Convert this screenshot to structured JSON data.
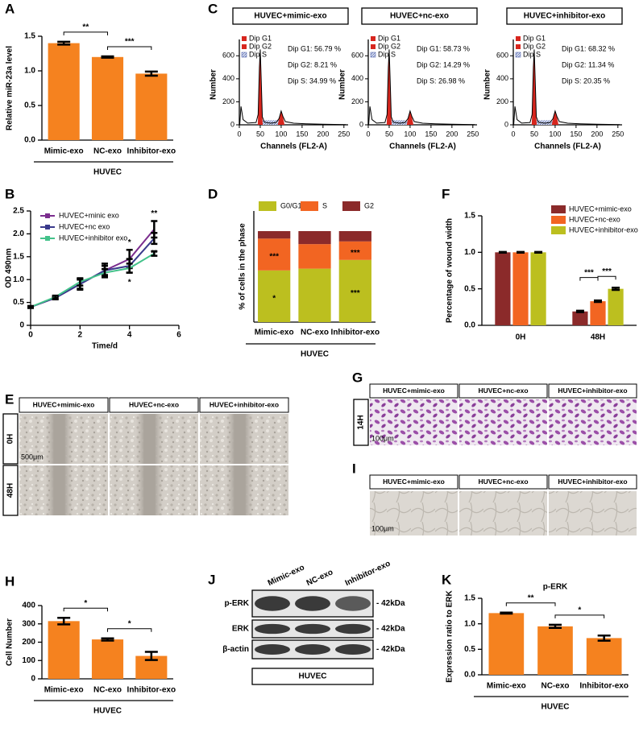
{
  "chart_data": [
    {
      "panel": "A",
      "type": "bar",
      "y_label": "Relative miR-23a level",
      "categories": [
        "Mimic-exo",
        "NC-exo",
        "Inhibitor-exo"
      ],
      "values": [
        1.4,
        1.2,
        0.96
      ],
      "errors": [
        0.02,
        0.01,
        0.03
      ],
      "color": "#f5821f",
      "ylim": [
        0,
        1.5
      ],
      "yticks": [
        {
          "value": 0,
          "label": "0.0"
        },
        0.5,
        {
          "value": 1,
          "label": "1.0"
        },
        1.5
      ],
      "significance": [
        "**",
        "***"
      ],
      "group": "HUVEC"
    },
    {
      "panel": "B",
      "type": "line",
      "x_label": "Time/d",
      "y_label": "OD 490nm",
      "x": [
        0,
        1,
        2,
        3,
        4,
        5
      ],
      "xlim": [
        0,
        6
      ],
      "xticks": [
        0,
        2,
        4,
        6
      ],
      "ylim": [
        0,
        2.5
      ],
      "yticks": [
        0,
        0.5,
        {
          "value": 1,
          "label": "1.0"
        },
        1.5,
        {
          "value": 2,
          "label": "2.0"
        },
        2.5
      ],
      "series": [
        {
          "name": "HUVEC+minic exo",
          "color": "#7b2d8e",
          "values": [
            0.4,
            0.6,
            0.9,
            1.2,
            1.45,
            2.1
          ],
          "errors": [
            0.02,
            0.03,
            0.1,
            0.15,
            0.2,
            0.18
          ]
        },
        {
          "name": "HUVEC+nc exo",
          "color": "#3a3a8c",
          "values": [
            0.4,
            0.6,
            0.9,
            1.2,
            1.3,
            1.9
          ],
          "errors": [
            0.02,
            0.03,
            0.12,
            0.1,
            0.15,
            0.12
          ]
        },
        {
          "name": "HUVEC+inhibitor exo",
          "color": "#43c28a",
          "values": [
            0.4,
            0.62,
            0.95,
            1.15,
            1.25,
            1.57
          ],
          "errors": [
            0.02,
            0.03,
            0.08,
            0.08,
            0.1,
            0.05
          ]
        }
      ],
      "annotations": [
        "*",
        "**",
        "*",
        "**"
      ]
    },
    {
      "panel": "D",
      "type": "stacked_bar",
      "y_label": "% of cells in the phase",
      "categories": [
        "Mimic-exo",
        "NC-exo",
        "Inhibitor-exo"
      ],
      "ylim": [
        0,
        100
      ],
      "series": [
        {
          "name": "G0/G1",
          "color": "#bcbf1f",
          "values": [
            56.79,
            58.73,
            68.32
          ]
        },
        {
          "name": "S",
          "color": "#f26522",
          "values": [
            34.99,
            26.98,
            20.35
          ]
        },
        {
          "name": "G2",
          "color": "#8b2a2a",
          "values": [
            8.21,
            14.29,
            11.34
          ]
        }
      ],
      "annotations": [
        "*",
        "***",
        "***",
        "***"
      ],
      "group": "HUVEC"
    },
    {
      "panel": "F",
      "type": "grouped_bar",
      "y_label": "Percentage of wound width",
      "categories": [
        "0H",
        "48H"
      ],
      "ylim": [
        0,
        1.5
      ],
      "yticks": [
        {
          "value": 0,
          "label": "0.0"
        },
        0.5,
        {
          "value": 1,
          "label": "1.0"
        },
        1.5
      ],
      "series": [
        {
          "name": "HUVEC+mimic-exo",
          "color": "#8b2a2a",
          "values": [
            1.0,
            0.19
          ],
          "errors": [
            0.005,
            0.01
          ]
        },
        {
          "name": "HUVEC+nc-exo",
          "color": "#f26522",
          "values": [
            1.0,
            0.33
          ],
          "errors": [
            0.005,
            0.01
          ]
        },
        {
          "name": "HUVEC+inhibitor-exo",
          "color": "#bcbf1f",
          "values": [
            1.0,
            0.5
          ],
          "errors": [
            0.005,
            0.015
          ]
        }
      ],
      "significance": [
        "***",
        "***"
      ]
    },
    {
      "panel": "H",
      "type": "bar",
      "y_label": "Cell Number",
      "categories": [
        "Mimic-exo",
        "NC-exo",
        "Inhibitor-exo"
      ],
      "values": [
        315,
        215,
        125
      ],
      "errors": [
        18,
        6,
        22
      ],
      "color": "#f5821f",
      "ylim": [
        0,
        400
      ],
      "yticks": [
        0,
        100,
        200,
        300,
        400
      ],
      "significance": [
        "*",
        "*"
      ],
      "group": "HUVEC"
    },
    {
      "panel": "K",
      "type": "bar",
      "title": "p-ERK",
      "y_label": "Expression ratio to ERK",
      "categories": [
        "Mimic-exo",
        "NC-exo",
        "Inhibitor-exo"
      ],
      "values": [
        1.21,
        0.95,
        0.72
      ],
      "errors": [
        0.01,
        0.03,
        0.05
      ],
      "color": "#f5821f",
      "ylim": [
        0,
        1.5
      ],
      "yticks": [
        {
          "value": 0,
          "label": "0.0"
        },
        0.5,
        {
          "value": 1,
          "label": "1.0"
        },
        1.5
      ],
      "significance": [
        "**",
        "*"
      ],
      "group": "HUVEC"
    }
  ],
  "flow_cytometry": {
    "panel": "C",
    "x_label": "Channels (FL2-A)",
    "y_label": "Number",
    "xlim": [
      0,
      260
    ],
    "xticks": [
      0,
      50,
      100,
      150,
      200,
      250
    ],
    "ylim": [
      0,
      700
    ],
    "yticks": [
      0,
      200,
      400,
      600
    ],
    "legend": [
      "Dip G1",
      "Dip G2",
      "Dip S"
    ],
    "panels": [
      {
        "title": "HUVEC+mimic-exo",
        "stats": [
          "Dip G1: 56.79 %",
          "Dip G2: 8.21 %",
          "Dip S: 34.99 %"
        ]
      },
      {
        "title": "HUVEC+nc-exo",
        "stats": [
          "Dip G1: 58.73 %",
          "Dip G2: 14.29 %",
          "Dip S: 26.98 %"
        ]
      },
      {
        "title": "HUVEC+inhibitor-exo",
        "stats": [
          "Dip G1: 68.32 %",
          "Dip G2: 11.34 %",
          "Dip S: 20.35 %"
        ]
      }
    ]
  },
  "wound_healing": {
    "panel": "E",
    "columns": [
      "HUVEC+mimic-exo",
      "HUVEC+nc-exo",
      "HUVEC+inhibitor-exo"
    ],
    "rows": [
      "0H",
      "48H"
    ],
    "scale_bar": "500μm"
  },
  "transwell": {
    "panel": "G",
    "columns": [
      "HUVEC+mimic-exo",
      "HUVEC+nc-exo",
      "HUVEC+inhibitor-exo"
    ],
    "rows": [
      "14H"
    ],
    "scale_bar": "100μm"
  },
  "tube_formation": {
    "panel": "I",
    "columns": [
      "HUVEC+mimic-exo",
      "HUVEC+nc-exo",
      "HUVEC+inhibitor-exo"
    ],
    "scale_bar": "100μm"
  },
  "western_blot": {
    "panel": "J",
    "lanes": [
      "Mimic-exo",
      "NC-exo",
      "Inhibitor-exo"
    ],
    "bands": [
      {
        "name": "p-ERK",
        "size": "- 42kDa"
      },
      {
        "name": "ERK",
        "size": "- 42kDa"
      },
      {
        "name": "β-actin",
        "size": "- 42kDa"
      }
    ],
    "group": "HUVEC"
  }
}
